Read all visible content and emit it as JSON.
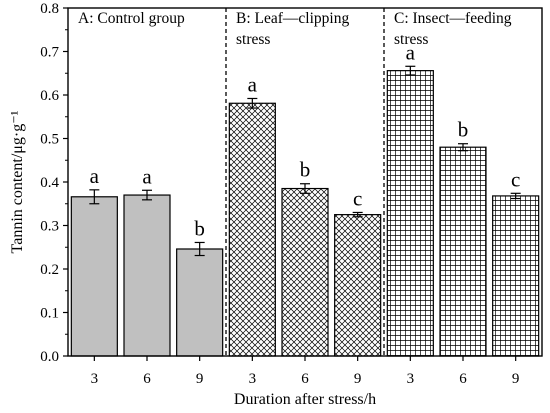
{
  "chart_data": {
    "type": "bar",
    "ylabel": "Tannin content/μg·g⁻¹",
    "xlabel": "Duration after stress/h",
    "ylim": [
      0,
      0.8
    ],
    "yticks": [
      "0.0",
      "0.1",
      "0.2",
      "0.3",
      "0.4",
      "0.5",
      "0.6",
      "0.7",
      "0.8"
    ],
    "grid": false,
    "groups": [
      {
        "title_lines": [
          "A: Control group"
        ],
        "pattern": "solid-gray",
        "categories": [
          "3",
          "6",
          "9"
        ],
        "values": [
          0.366,
          0.37,
          0.246
        ],
        "errors": [
          0.016,
          0.011,
          0.015
        ],
        "letters": [
          "a",
          "a",
          "b"
        ]
      },
      {
        "title_lines": [
          "B: Leaf—clipping",
          "stress"
        ],
        "pattern": "diagonal-crosshatch",
        "categories": [
          "3",
          "6",
          "9"
        ],
        "values": [
          0.581,
          0.385,
          0.325
        ],
        "errors": [
          0.011,
          0.011,
          0.005
        ],
        "letters": [
          "a",
          "b",
          "c"
        ]
      },
      {
        "title_lines": [
          "C: Insect—feeding",
          "stress"
        ],
        "pattern": "square-grid",
        "categories": [
          "3",
          "6",
          "9"
        ],
        "values": [
          0.656,
          0.48,
          0.368
        ],
        "errors": [
          0.01,
          0.008,
          0.006
        ],
        "letters": [
          "a",
          "b",
          "c"
        ]
      }
    ],
    "colors": {
      "bar_fill": "#c0c0c0",
      "pattern_line": "#000000",
      "background": "#ffffff"
    }
  }
}
